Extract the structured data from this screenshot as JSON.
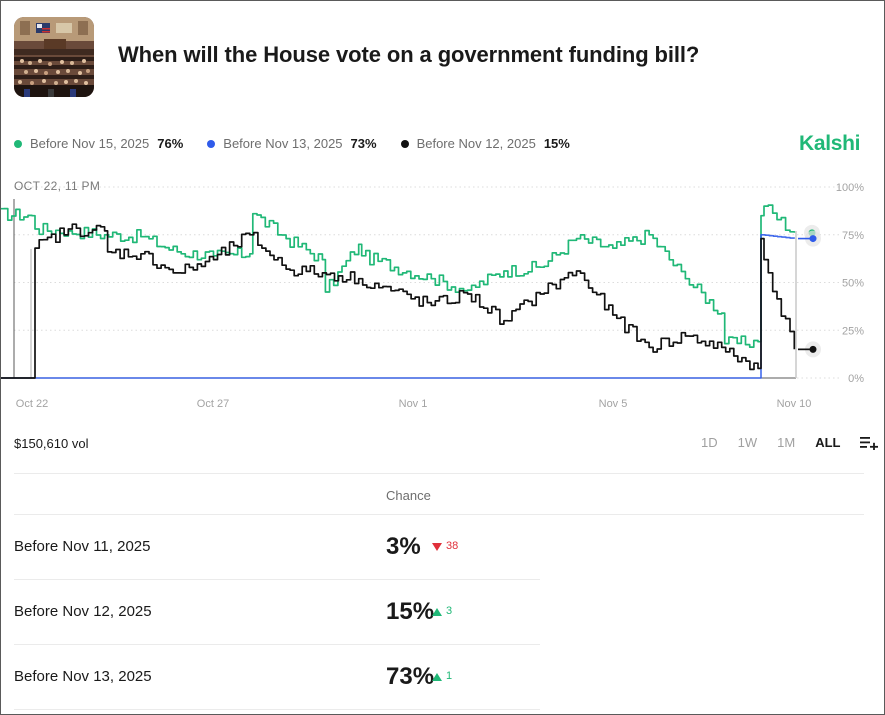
{
  "header": {
    "title": "When will the House vote on a government funding bill?",
    "brand": "Kalshi"
  },
  "legend": [
    {
      "label": "Before Nov 15, 2025",
      "value": "76%",
      "color": "#20b877"
    },
    {
      "label": "Before Nov 13, 2025",
      "value": "73%",
      "color": "#2f5bea"
    },
    {
      "label": "Before Nov 12, 2025",
      "value": "15%",
      "color": "#111111"
    }
  ],
  "chart_data": {
    "type": "line",
    "hover_label": "OCT 22, 11 PM",
    "ylim": [
      0,
      100
    ],
    "y_ticks": [
      "100%",
      "75%",
      "50%",
      "25%",
      "0%"
    ],
    "x_ticks": [
      "Oct 22",
      "Oct 27",
      "Nov 1",
      "Nov 5",
      "Nov 10"
    ],
    "grid": true,
    "series": [
      {
        "name": "Before Nov 15, 2025",
        "color": "#20b877",
        "points": [
          [
            "Oct 21",
            86
          ],
          [
            "Oct 22",
            85
          ],
          [
            "Oct 22",
            78
          ],
          [
            "Oct 23",
            77
          ],
          [
            "Oct 24",
            75
          ],
          [
            "Oct 25",
            74
          ],
          [
            "Oct 26",
            66
          ],
          [
            "Oct 27",
            64
          ],
          [
            "Oct 28",
            65
          ],
          [
            "Oct 28",
            86
          ],
          [
            "Oct 29",
            73
          ],
          [
            "Oct 30",
            62
          ],
          [
            "Oct 30",
            45
          ],
          [
            "Oct 31",
            70
          ],
          [
            "Oct 31",
            64
          ],
          [
            "Nov 1",
            52
          ],
          [
            "Nov 2",
            46
          ],
          [
            "Nov 3",
            56
          ],
          [
            "Nov 4",
            58
          ],
          [
            "Nov 5",
            73
          ],
          [
            "Nov 6",
            68
          ],
          [
            "Nov 7",
            75
          ],
          [
            "Nov 8",
            52
          ],
          [
            "Nov 9",
            34
          ],
          [
            "Nov 9",
            18
          ],
          [
            "Nov 10",
            19
          ],
          [
            "Nov 10",
            85
          ],
          [
            "Nov 10",
            90
          ],
          [
            "Nov 11",
            76
          ]
        ]
      },
      {
        "name": "Before Nov 13, 2025",
        "color": "#2f5bea",
        "points": [
          [
            "Oct 21",
            0
          ],
          [
            "Nov 10",
            0
          ],
          [
            "Nov 10",
            75
          ],
          [
            "Nov 11",
            73
          ]
        ]
      },
      {
        "name": "Before Nov 12, 2025",
        "color": "#111111",
        "points": [
          [
            "Oct 21",
            0
          ],
          [
            "Oct 22",
            0
          ],
          [
            "Oct 22",
            68
          ],
          [
            "Oct 23",
            78
          ],
          [
            "Oct 24",
            77
          ],
          [
            "Oct 24",
            66
          ],
          [
            "Oct 25",
            65
          ],
          [
            "Oct 26",
            55
          ],
          [
            "Oct 27",
            62
          ],
          [
            "Oct 28",
            75
          ],
          [
            "Oct 29",
            57
          ],
          [
            "Oct 30",
            55
          ],
          [
            "Oct 31",
            52
          ],
          [
            "Nov 1",
            38
          ],
          [
            "Nov 2",
            44
          ],
          [
            "Nov 3",
            30
          ],
          [
            "Nov 4",
            44
          ],
          [
            "Nov 5",
            56
          ],
          [
            "Nov 6",
            33
          ],
          [
            "Nov 7",
            16
          ],
          [
            "Nov 8",
            22
          ],
          [
            "Nov 9",
            16
          ],
          [
            "Nov 10",
            5
          ],
          [
            "Nov 10",
            73
          ],
          [
            "Nov 10",
            62
          ],
          [
            "Nov 11",
            15
          ]
        ]
      }
    ]
  },
  "volume": "$150,610 vol",
  "ranges": [
    {
      "label": "1D",
      "active": false
    },
    {
      "label": "1W",
      "active": false
    },
    {
      "label": "1M",
      "active": false
    },
    {
      "label": "ALL",
      "active": true
    }
  ],
  "table": {
    "column_header": "Chance",
    "rows": [
      {
        "label": "Before Nov 11, 2025",
        "chance": "3%",
        "change": "38",
        "direction": "down"
      },
      {
        "label": "Before Nov 12, 2025",
        "chance": "15%",
        "change": "3",
        "direction": "up"
      },
      {
        "label": "Before Nov 13, 2025",
        "chance": "73%",
        "change": "1",
        "direction": "up"
      }
    ]
  }
}
